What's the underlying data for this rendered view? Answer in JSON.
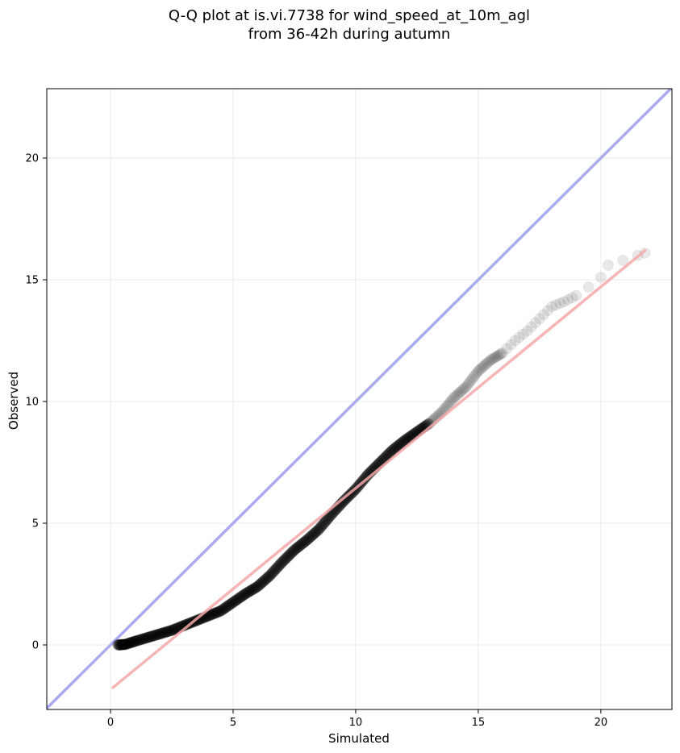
{
  "chart_data": {
    "type": "scatter",
    "title_lines": [
      "Q-Q plot at is.vi.7738 for wind_speed_at_10m_agl",
      "from 36-42h during autumn"
    ],
    "xlabel": "Simulated",
    "ylabel": "Observed",
    "xlim": [
      -2.6,
      22.9
    ],
    "ylim": [
      -2.65,
      22.85
    ],
    "xticks": [
      0,
      5,
      10,
      15,
      20
    ],
    "yticks": [
      0,
      5,
      10,
      15,
      20
    ],
    "grid": true,
    "colors": {
      "points": "#000000",
      "identity_line": "#aaaaf0",
      "fit_line": "#f4a8a8",
      "grid": "#ebebeb"
    },
    "points": [
      [
        0.3,
        0.0
      ],
      [
        0.6,
        0.02
      ],
      [
        1.0,
        0.15
      ],
      [
        1.5,
        0.3
      ],
      [
        2.0,
        0.45
      ],
      [
        2.5,
        0.6
      ],
      [
        3.0,
        0.8
      ],
      [
        3.5,
        1.0
      ],
      [
        4.0,
        1.2
      ],
      [
        4.5,
        1.4
      ],
      [
        5.0,
        1.75
      ],
      [
        5.5,
        2.1
      ],
      [
        6.0,
        2.4
      ],
      [
        6.5,
        2.85
      ],
      [
        7.0,
        3.4
      ],
      [
        7.5,
        3.9
      ],
      [
        8.0,
        4.3
      ],
      [
        8.5,
        4.75
      ],
      [
        9.0,
        5.35
      ],
      [
        9.5,
        5.9
      ],
      [
        10.0,
        6.4
      ],
      [
        10.5,
        7.0
      ],
      [
        11.0,
        7.5
      ],
      [
        11.5,
        8.0
      ],
      [
        12.0,
        8.4
      ],
      [
        12.5,
        8.75
      ],
      [
        13.0,
        9.1
      ],
      [
        13.5,
        9.55
      ],
      [
        14.0,
        10.15
      ],
      [
        14.5,
        10.6
      ],
      [
        15.0,
        11.25
      ],
      [
        15.5,
        11.7
      ],
      [
        16.0,
        12.0
      ],
      [
        16.5,
        12.5
      ],
      [
        17.0,
        12.9
      ],
      [
        17.5,
        13.4
      ],
      [
        18.0,
        13.9
      ],
      [
        18.5,
        14.1
      ],
      [
        19.0,
        14.35
      ],
      [
        19.5,
        14.7
      ],
      [
        20.0,
        15.1
      ],
      [
        20.3,
        15.6
      ],
      [
        20.9,
        15.8
      ],
      [
        21.5,
        16.0
      ],
      [
        21.8,
        16.1
      ]
    ],
    "identity_line": [
      [
        -2.6,
        -2.6
      ],
      [
        22.9,
        22.9
      ]
    ],
    "fit_line": [
      [
        0.1,
        -1.75
      ],
      [
        21.8,
        16.2
      ]
    ]
  }
}
